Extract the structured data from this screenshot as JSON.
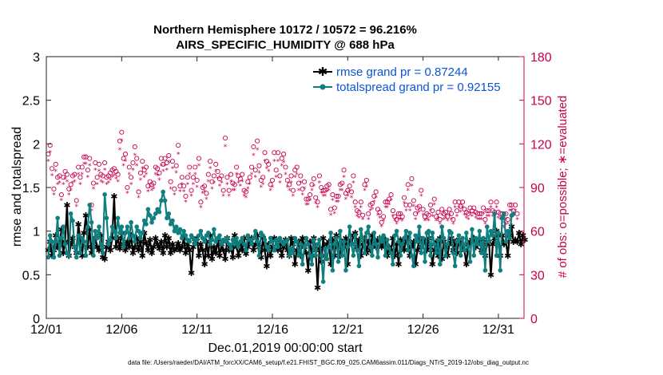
{
  "chart_data": {
    "type": "line",
    "title_line1": "Northern Hemisphere 10172 / 10572 = 96.216%",
    "title_line2": "AIRS_SPECIFIC_HUMIDITY @ 688 hPa",
    "xlabel": "Dec.01,2019 00:00:00 start",
    "ylabel": "rmse and totalspread",
    "ylabel_right": "# of obs: o=possible; ∗=evaluated",
    "xlim": [
      0,
      31.7
    ],
    "ylim": [
      0,
      3
    ],
    "ylim_right": [
      0,
      180
    ],
    "x_ticks": [
      0,
      5,
      10,
      15,
      20,
      25,
      30
    ],
    "x_tick_labels": [
      "12/01",
      "12/06",
      "12/11",
      "12/16",
      "12/21",
      "12/26",
      "12/31"
    ],
    "y_ticks": [
      0,
      0.5,
      1,
      1.5,
      2,
      2.5,
      3
    ],
    "y_tick_labels": [
      "0",
      "0.5",
      "1",
      "1.5",
      "2",
      "2.5",
      "3"
    ],
    "y_ticks_right": [
      0,
      30,
      60,
      90,
      120,
      150,
      180
    ],
    "y_tick_labels_right": [
      "0",
      "30",
      "60",
      "90",
      "120",
      "150",
      "180"
    ],
    "legend": {
      "position": "top-right",
      "entries": [
        "rmse grand pr = 0.87244",
        "totalspread grand pr = 0.92155"
      ]
    },
    "footer": "data file: /Users/raeder/DAI/ATM_forcXX/CAM6_setup/f.e21.FHIST_BGC.f09_025.CAM6assim.011/Diags_NTrS_2019-12/obs_diag_output.nc",
    "colors": {
      "rmse": "#000000",
      "totalspread": "#0f7f7f",
      "obs": "#c8004f",
      "legend_text": "#0b55d6"
    },
    "series": [
      {
        "name": "rmse",
        "values": [
          0.78,
          0.88,
          0.72,
          0.78,
          0.95,
          0.82,
          0.84,
          1.02,
          0.75,
          0.88,
          1.3,
          0.72,
          0.85,
          0.92,
          0.82,
          0.75,
          1.08,
          0.92,
          0.72,
          0.98,
          1.18,
          0.82,
          1.02,
          0.75,
          0.85,
          0.92,
          0.82,
          0.78,
          0.95,
          0.7,
          0.68,
          0.82,
          0.88,
          0.78,
          0.92,
          1.4,
          0.82,
          0.92,
          0.8,
          0.98,
          0.85,
          0.78,
          0.88,
          0.82,
          0.95,
          0.75,
          0.82,
          0.92,
          0.78,
          0.88,
          0.72,
          0.98,
          0.86,
          0.78,
          0.9,
          0.75,
          0.82,
          0.92,
          0.85,
          0.8,
          0.88,
          0.75,
          0.95,
          0.82,
          0.92,
          0.75,
          0.85,
          0.78,
          0.8,
          0.86,
          0.78,
          0.82,
          0.92,
          0.75,
          0.85,
          0.78,
          0.52,
          0.82,
          0.88,
          0.92,
          0.72,
          0.85,
          0.78,
          0.62,
          0.88,
          0.72,
          0.95,
          0.68,
          0.82,
          0.75,
          0.9,
          0.72,
          0.85,
          0.78,
          0.68,
          0.92,
          0.78,
          0.82,
          0.7,
          0.95,
          0.82,
          0.72,
          0.85,
          0.78,
          0.92,
          0.74,
          0.82,
          0.88,
          0.92,
          0.78,
          0.85,
          0.95,
          0.82,
          0.7,
          0.92,
          0.78,
          0.6,
          0.85,
          0.72,
          0.82,
          0.92,
          0.9,
          0.78,
          0.85,
          0.72,
          0.82,
          0.9,
          0.78,
          0.72,
          0.92,
          0.85,
          0.62,
          0.78,
          0.88,
          0.72,
          0.92,
          0.82,
          0.75,
          0.55,
          0.88,
          0.72,
          0.92,
          0.78,
          0.35,
          0.8,
          0.65,
          0.92,
          0.72,
          0.85,
          0.88,
          0.62,
          0.9,
          0.72,
          0.95,
          0.82,
          0.72,
          0.88,
          0.82,
          0.92,
          0.62,
          0.88,
          0.85,
          0.95,
          0.98,
          0.82,
          0.9,
          0.72,
          0.85,
          0.92,
          0.75,
          0.88,
          0.78,
          0.95,
          0.85,
          0.82,
          0.9,
          0.92,
          0.82,
          0.85,
          0.9,
          0.72,
          0.82,
          0.78,
          0.92,
          0.72,
          0.85,
          0.62,
          0.9,
          0.88,
          0.78,
          0.9,
          0.92,
          0.72,
          0.82,
          0.88,
          0.62,
          0.78,
          0.92,
          0.82,
          0.9,
          0.88,
          0.78,
          0.92,
          0.82,
          0.62,
          0.78,
          0.88,
          0.72,
          0.92,
          0.68,
          0.88,
          0.82,
          0.72,
          0.85,
          0.92,
          0.78,
          0.88,
          0.75,
          0.9,
          0.85,
          0.8,
          0.78,
          0.62,
          0.85,
          0.88,
          0.9,
          0.92,
          0.82,
          0.85,
          0.88,
          0.78,
          0.9,
          0.72,
          0.85,
          0.88,
          0.5,
          0.85,
          0.92,
          1.0,
          0.95,
          0.72,
          0.95,
          0.85,
          0.88,
          0.72,
          0.95,
          1.05,
          0.88,
          0.9,
          0.88,
          0.98,
          0.85,
          0.95,
          0.9
        ],
        "values_note": "rmse per analysis time (4 per day)"
      },
      {
        "name": "totalspread",
        "values": [
          0.7,
          0.95,
          0.88,
          0.7,
          0.88,
          1.15,
          0.72,
          0.92,
          1.05,
          0.85,
          0.75,
          0.72,
          1.2,
          1.12,
          0.82,
          0.7,
          0.95,
          0.75,
          0.92,
          0.88,
          0.72,
          1.05,
          1.3,
          1.1,
          0.72,
          1.0,
          0.92,
          1.05,
          0.85,
          0.75,
          1.42,
          1.15,
          0.85,
          0.9,
          1.05,
          1.0,
          0.92,
          1.15,
          0.98,
          1.05,
          0.82,
          0.98,
          1.05,
          0.92,
          1.1,
          0.95,
          0.88,
          1.05,
          1.0,
          0.92,
          0.98,
          1.12,
          1.08,
          1.25,
          1.18,
          1.1,
          1.15,
          1.2,
          1.25,
          1.22,
          1.35,
          1.45,
          1.35,
          1.15,
          1.2,
          1.08,
          1.12,
          1.0,
          1.05,
          0.98,
          1.02,
          0.92,
          1.0,
          0.95,
          0.9,
          0.88,
          0.95,
          0.92,
          0.85,
          0.9,
          0.95,
          1.0,
          0.92,
          0.88,
          0.95,
          0.98,
          0.85,
          0.9,
          1.02,
          0.88,
          0.92,
          0.95,
          0.85,
          0.9,
          0.88,
          0.92,
          0.85,
          0.8,
          0.9,
          0.85,
          0.92,
          0.82,
          0.88,
          0.92,
          0.85,
          0.78,
          0.95,
          0.9,
          0.85,
          0.92,
          1.0,
          0.88,
          0.72,
          0.98,
          0.95,
          0.9,
          0.82,
          0.78,
          0.92,
          0.88,
          0.78,
          0.9,
          0.82,
          0.92,
          0.88,
          0.85,
          0.88,
          0.9,
          0.72,
          0.8,
          0.75,
          0.92,
          0.88,
          0.72,
          0.85,
          0.62,
          0.82,
          0.92,
          0.85,
          0.72,
          0.62,
          0.9,
          0.72,
          0.85,
          0.9,
          0.72,
          0.42,
          0.8,
          0.68,
          0.82,
          0.98,
          0.55,
          0.85,
          0.92,
          0.65,
          1.0,
          0.72,
          0.88,
          0.55,
          0.82,
          1.05,
          0.85,
          0.72,
          0.95,
          0.78,
          0.6,
          1.02,
          0.92,
          0.75,
          0.98,
          1.05,
          0.82,
          0.72,
          0.98,
          0.85,
          0.7,
          0.92,
          0.88,
          0.95,
          0.72,
          0.9,
          0.8,
          0.75,
          0.62,
          0.95,
          1.0,
          0.88,
          0.72,
          0.85,
          0.92,
          1.0,
          0.78,
          0.98,
          0.72,
          0.6,
          0.95,
          0.88,
          1.05,
          0.75,
          0.92,
          0.65,
          0.98,
          1.0,
          0.72,
          0.98,
          0.85,
          0.75,
          0.9,
          0.62,
          1.05,
          0.92,
          0.72,
          0.85,
          1.0,
          0.98,
          0.75,
          0.6,
          0.88,
          0.95,
          0.72,
          0.92,
          0.78,
          0.98,
          0.82,
          0.65,
          1.02,
          0.72,
          0.92,
          0.85,
          1.0,
          0.75,
          0.92,
          0.55,
          1.05,
          0.88,
          1.0,
          0.95,
          1.2,
          0.72,
          0.98,
          0.55,
          1.15,
          1.2,
          0.88,
          1.0,
          0.92,
          1.18,
          1.2
        ]
      },
      {
        "name": "obs_possible",
        "axis": "right",
        "marker": "o",
        "values": [
          113,
          119,
          103,
          89,
          106,
          97,
          98,
          85,
          97,
          101,
          99,
          89,
          92,
          98,
          99,
          81,
          104,
          97,
          104,
          111,
          111,
          102,
          110,
          78,
          93,
          107,
          97,
          106,
          99,
          98,
          107,
          97,
          98,
          100,
          102,
          103,
          101,
          99,
          122,
          128,
          110,
          113,
          90,
          104,
          97,
          107,
          118,
          110,
          87,
          100,
          108,
          102,
          104,
          91,
          94,
          92,
          93,
          104,
          103,
          100,
          110,
          106,
          110,
          107,
          112,
          94,
          108,
          89,
          105,
          119,
          91,
          97,
          91,
          84,
          97,
          104,
          88,
          97,
          104,
          95,
          110,
          80,
          90,
          91,
          86,
          99,
          108,
          94,
          98,
          106,
          101,
          96,
          98,
          88,
          124,
          97,
          88,
          99,
          93,
          92,
          104,
          98,
          96,
          99,
          88,
          87,
          94,
          97,
          104,
          118,
          102,
          122,
          105,
          95,
          97,
          114,
          108,
          106,
          92,
          95,
          114,
          102,
          114,
          98,
          110,
          113,
          104,
          95,
          92,
          98,
          88,
          102,
          104,
          93,
          98,
          89,
          94,
          82,
          82,
          85,
          92,
          96,
          83,
          80,
          98,
          90,
          88,
          88,
          91,
          92,
          75,
          85,
          76,
          84,
          84,
          92,
          93,
          102,
          86,
          88,
          91,
          87,
          98,
          80,
          74,
          73,
          80,
          71,
          92,
          95,
          72,
          78,
          79,
          84,
          87,
          75,
          73,
          66,
          70,
          80,
          80,
          82,
          85,
          74,
          70,
          68,
          72,
          72,
          70,
          83,
          78,
          92,
          78,
          96,
          81,
          72,
          76,
          77,
          88,
          75,
          70,
          72,
          71,
          78,
          74,
          82,
          70,
          73,
          68,
          75,
          72,
          73,
          70,
          75,
          72,
          68,
          80,
          74,
          80,
          77,
          80,
          75,
          73,
          72,
          76,
          74,
          76,
          73,
          72,
          72,
          72,
          76,
          68,
          74,
          74,
          80,
          74,
          73,
          80,
          73,
          72,
          72,
          65,
          72,
          68,
          78,
          78,
          74,
          78,
          72
        ]
      },
      {
        "name": "obs_evaluated",
        "axis": "right",
        "marker": "*",
        "values": [
          108,
          114,
          98,
          85,
          101,
          92,
          93,
          81,
          92,
          96,
          94,
          85,
          88,
          93,
          94,
          77,
          99,
          92,
          99,
          106,
          106,
          97,
          105,
          74,
          89,
          102,
          92,
          101,
          94,
          93,
          102,
          92,
          93,
          95,
          97,
          98,
          96,
          94,
          116,
          122,
          105,
          108,
          86,
          99,
          92,
          102,
          112,
          105,
          83,
          95,
          103,
          97,
          99,
          87,
          90,
          88,
          89,
          99,
          98,
          95,
          105,
          101,
          105,
          102,
          107,
          89,
          103,
          85,
          100,
          113,
          87,
          92,
          87,
          80,
          92,
          99,
          84,
          92,
          99,
          90,
          105,
          76,
          86,
          87,
          82,
          94,
          103,
          89,
          93,
          101,
          96,
          91,
          93,
          84,
          118,
          92,
          84,
          94,
          88,
          88,
          99,
          93,
          91,
          94,
          84,
          83,
          89,
          92,
          99,
          112,
          97,
          116,
          100,
          90,
          92,
          108,
          103,
          101,
          88,
          90,
          108,
          97,
          108,
          93,
          105,
          107,
          99,
          90,
          88,
          93,
          84,
          97,
          99,
          88,
          93,
          85,
          89,
          78,
          78,
          81,
          88,
          91,
          79,
          76,
          93,
          86,
          84,
          84,
          87,
          88,
          71,
          81,
          72,
          80,
          80,
          88,
          88,
          97,
          82,
          84,
          87,
          83,
          93,
          76,
          70,
          69,
          76,
          68,
          88,
          90,
          68,
          74,
          75,
          80,
          83,
          71,
          69,
          63,
          67,
          76,
          76,
          78,
          81,
          70,
          67,
          65,
          68,
          68,
          67,
          79,
          74,
          88,
          74,
          91,
          77,
          68,
          72,
          73,
          84,
          71,
          67,
          68,
          67,
          74,
          70,
          78,
          67,
          69,
          65,
          71,
          68,
          69,
          67,
          71,
          68,
          65,
          76,
          70,
          76,
          73,
          76,
          71,
          69,
          68,
          72,
          70,
          72,
          69,
          68,
          68,
          68,
          72,
          65,
          70,
          70,
          76,
          70,
          69,
          76,
          69,
          68,
          68,
          62,
          68,
          65,
          74,
          74,
          70,
          74,
          68
        ]
      }
    ]
  }
}
